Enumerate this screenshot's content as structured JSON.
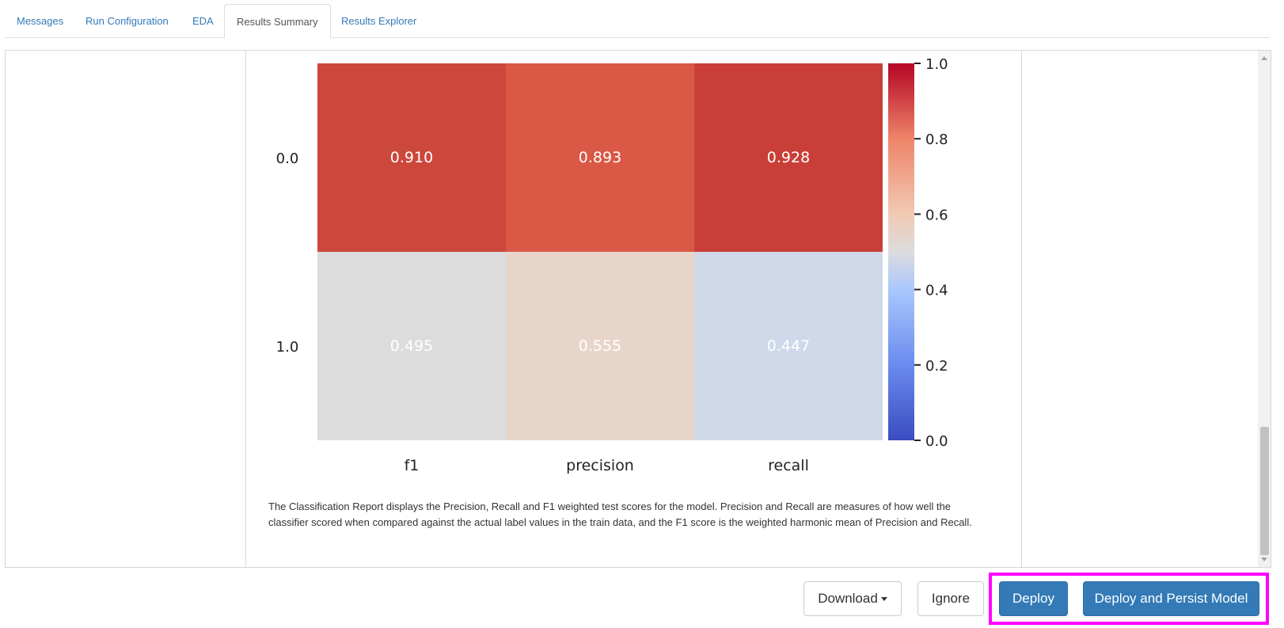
{
  "tabs": [
    {
      "label": "Messages"
    },
    {
      "label": "Run Configuration"
    },
    {
      "label": "EDA"
    },
    {
      "label": "Results Summary",
      "active": true
    },
    {
      "label": "Results Explorer"
    }
  ],
  "chart_data": {
    "type": "heatmap",
    "rows": [
      "0.0",
      "1.0"
    ],
    "columns": [
      "f1",
      "precision",
      "recall"
    ],
    "values": [
      [
        0.91,
        0.893,
        0.928
      ],
      [
        0.495,
        0.555,
        0.447
      ]
    ],
    "value_labels": [
      [
        "0.910",
        "0.893",
        "0.928"
      ],
      [
        "0.495",
        "0.555",
        "0.447"
      ]
    ],
    "colorbar": {
      "range": [
        0.0,
        1.0
      ],
      "ticks": [
        "0.0",
        "0.2",
        "0.4",
        "0.6",
        "0.8",
        "1.0"
      ],
      "colormap": "coolwarm"
    }
  },
  "description": "The Classification Report displays the Precision, Recall and F1 weighted test scores for the model. Precision and Recall are measures of how well the classifier scored when compared against the actual label values in the train data, and the F1 score is the weighted harmonic mean of Precision and Recall.",
  "buttons": {
    "download": "Download",
    "ignore": "Ignore",
    "deploy": "Deploy",
    "deploy_persist": "Deploy and Persist Model"
  },
  "colors": {
    "primary": "#337ab7",
    "highlight": "#ff00ff",
    "cell_00": "#cc473c",
    "cell_01": "#d95846",
    "cell_02": "#c93f38",
    "cell_10": "#dcdcdd",
    "cell_11": "#e8d5c9",
    "cell_12": "#cfd9ea"
  }
}
